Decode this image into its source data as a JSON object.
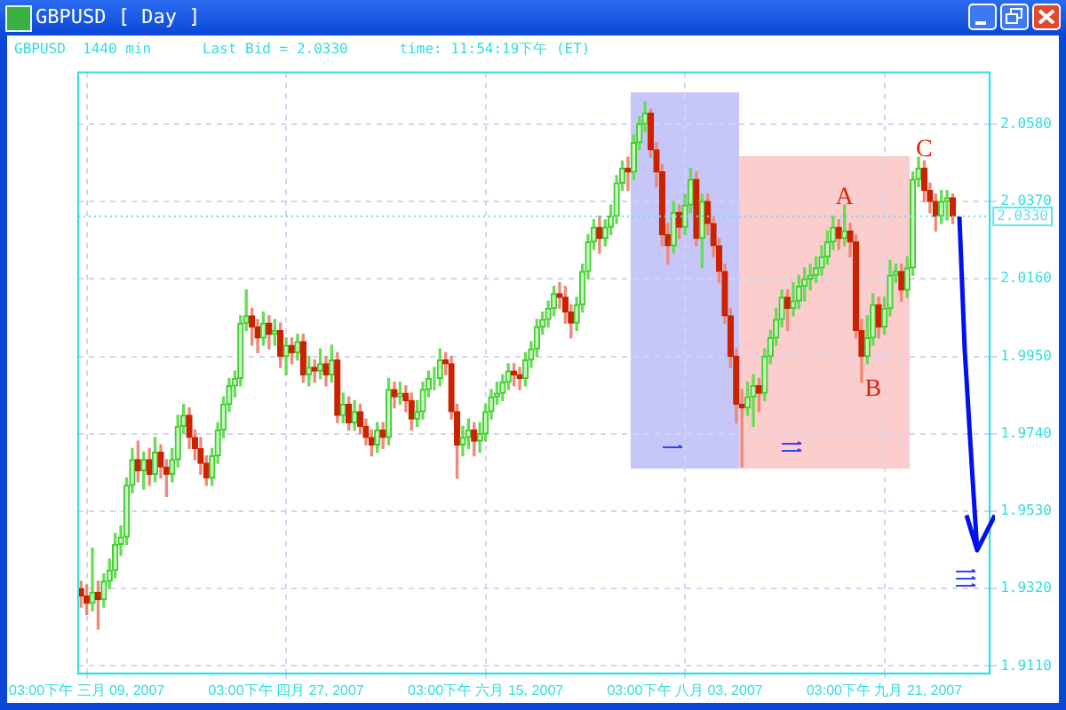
{
  "chart_data": {
    "type": "candlestick",
    "title": "GBPUSD [ Day ]",
    "subtitle": "GBPUSD  1440 min      Last Bid = 2.0330      time: 11:54:19下午 (ET)",
    "categories": [
      null,
      "03:00下午 三月 09, 2007",
      null,
      null,
      null,
      null,
      null,
      null,
      null,
      null,
      null,
      null,
      null,
      null,
      null,
      null,
      null,
      null,
      null,
      null,
      null,
      null,
      null,
      null,
      null,
      null,
      null,
      null,
      null,
      null,
      null,
      null,
      null,
      null,
      null,
      null,
      "03:00下午 四月 27, 2007",
      null,
      null,
      null,
      null,
      null,
      null,
      null,
      null,
      null,
      null,
      null,
      null,
      null,
      null,
      null,
      null,
      null,
      null,
      null,
      null,
      null,
      null,
      null,
      null,
      null,
      null,
      null,
      null,
      null,
      null,
      null,
      null,
      null,
      null,
      "03:00下午 六月 15, 2007",
      null,
      null,
      null,
      null,
      null,
      null,
      null,
      null,
      null,
      null,
      null,
      null,
      null,
      null,
      null,
      null,
      null,
      null,
      null,
      null,
      null,
      null,
      null,
      null,
      null,
      null,
      null,
      null,
      null,
      null,
      null,
      null,
      null,
      null,
      "03:00下午 八月 03, 2007",
      null,
      null,
      null,
      null,
      null,
      null,
      null,
      null,
      null,
      null,
      null,
      null,
      null,
      null,
      null,
      null,
      null,
      null,
      null,
      null,
      null,
      null,
      null,
      null,
      null,
      null,
      null,
      null,
      null,
      null,
      null,
      null,
      null,
      null,
      "03:00下午 九月 21, 2007",
      null,
      null,
      null,
      null,
      null,
      null,
      null,
      null,
      null,
      null,
      null,
      null
    ],
    "ohlc": [
      [
        1.932,
        1.934,
        1.927,
        1.93
      ],
      [
        1.93,
        1.933,
        1.925,
        1.928
      ],
      [
        1.928,
        1.943,
        1.926,
        1.931
      ],
      [
        1.931,
        1.934,
        1.921,
        1.929
      ],
      [
        1.929,
        1.936,
        1.927,
        1.934
      ],
      [
        1.934,
        1.94,
        1.932,
        1.937
      ],
      [
        1.937,
        1.947,
        1.935,
        1.944
      ],
      [
        1.944,
        1.949,
        1.941,
        1.946
      ],
      [
        1.946,
        1.962,
        1.944,
        1.96
      ],
      [
        1.96,
        1.97,
        1.958,
        1.967
      ],
      [
        1.967,
        1.972,
        1.961,
        1.964
      ],
      [
        1.964,
        1.969,
        1.959,
        1.967
      ],
      [
        1.967,
        1.97,
        1.96,
        1.963
      ],
      [
        1.963,
        1.973,
        1.961,
        1.969
      ],
      [
        1.969,
        1.971,
        1.962,
        1.965
      ],
      [
        1.965,
        1.967,
        1.957,
        1.963
      ],
      [
        1.963,
        1.97,
        1.961,
        1.967
      ],
      [
        1.967,
        1.979,
        1.965,
        1.976
      ],
      [
        1.976,
        1.982,
        1.974,
        1.979
      ],
      [
        1.979,
        1.981,
        1.97,
        1.973
      ],
      [
        1.973,
        1.975,
        1.967,
        1.97
      ],
      [
        1.97,
        1.973,
        1.963,
        1.966
      ],
      [
        1.966,
        1.968,
        1.96,
        1.962
      ],
      [
        1.962,
        1.97,
        1.96,
        1.968
      ],
      [
        1.968,
        1.977,
        1.966,
        1.975
      ],
      [
        1.975,
        1.984,
        1.973,
        1.982
      ],
      [
        1.982,
        1.989,
        1.98,
        1.987
      ],
      [
        1.987,
        1.991,
        1.984,
        1.989
      ],
      [
        1.989,
        2.006,
        1.987,
        2.004
      ],
      [
        2.004,
        2.013,
        2.002,
        2.006
      ],
      [
        2.006,
        2.008,
        1.998,
        2.003
      ],
      [
        2.003,
        2.005,
        1.996,
        2.0
      ],
      [
        2.0,
        2.007,
        1.998,
        2.004
      ],
      [
        2.004,
        2.006,
        1.997,
        2.001
      ],
      [
        2.001,
        2.005,
        1.998,
        2.002
      ],
      [
        2.002,
        2.004,
        1.992,
        1.995
      ],
      [
        1.995,
        2.0,
        1.99,
        1.998
      ],
      [
        1.998,
        2.0,
        1.993,
        1.996
      ],
      [
        1.996,
        2.001,
        1.994,
        1.999
      ],
      [
        1.999,
        2.001,
        1.988,
        1.99
      ],
      [
        1.99,
        1.995,
        1.987,
        1.992
      ],
      [
        1.992,
        1.994,
        1.988,
        1.991
      ],
      [
        1.991,
        1.997,
        1.989,
        1.993
      ],
      [
        1.993,
        1.995,
        1.987,
        1.99
      ],
      [
        1.99,
        1.998,
        1.988,
        1.994
      ],
      [
        1.994,
        1.996,
        1.977,
        1.979
      ],
      [
        1.979,
        1.985,
        1.977,
        1.982
      ],
      [
        1.982,
        1.984,
        1.975,
        1.977
      ],
      [
        1.977,
        1.983,
        1.975,
        1.98
      ],
      [
        1.98,
        1.982,
        1.974,
        1.976
      ],
      [
        1.976,
        1.978,
        1.971,
        1.973
      ],
      [
        1.973,
        1.975,
        1.968,
        1.971
      ],
      [
        1.971,
        1.977,
        1.969,
        1.975
      ],
      [
        1.975,
        1.977,
        1.97,
        1.973
      ],
      [
        1.973,
        1.989,
        1.971,
        1.986
      ],
      [
        1.986,
        1.988,
        1.981,
        1.984
      ],
      [
        1.984,
        1.988,
        1.982,
        1.985
      ],
      [
        1.985,
        1.987,
        1.98,
        1.983
      ],
      [
        1.983,
        1.985,
        1.975,
        1.978
      ],
      [
        1.978,
        1.983,
        1.976,
        1.98
      ],
      [
        1.98,
        1.988,
        1.978,
        1.986
      ],
      [
        1.986,
        1.991,
        1.984,
        1.989
      ],
      [
        1.989,
        1.992,
        1.986,
        1.989
      ],
      [
        1.989,
        1.997,
        1.987,
        1.994
      ],
      [
        1.994,
        1.996,
        1.99,
        1.993
      ],
      [
        1.993,
        1.995,
        1.978,
        1.98
      ],
      [
        1.98,
        1.982,
        1.962,
        1.971
      ],
      [
        1.971,
        1.976,
        1.968,
        1.973
      ],
      [
        1.973,
        1.978,
        1.97,
        1.975
      ],
      [
        1.975,
        1.977,
        1.968,
        1.972
      ],
      [
        1.972,
        1.977,
        1.969,
        1.974
      ],
      [
        1.974,
        1.982,
        1.972,
        1.98
      ],
      [
        1.98,
        1.986,
        1.978,
        1.984
      ],
      [
        1.984,
        1.988,
        1.982,
        1.985
      ],
      [
        1.985,
        1.99,
        1.983,
        1.988
      ],
      [
        1.988,
        1.993,
        1.986,
        1.991
      ],
      [
        1.991,
        1.993,
        1.987,
        1.99
      ],
      [
        1.99,
        1.992,
        1.986,
        1.989
      ],
      [
        1.989,
        1.996,
        1.987,
        1.994
      ],
      [
        1.994,
        1.999,
        1.992,
        1.997
      ],
      [
        1.997,
        2.005,
        1.995,
        2.003
      ],
      [
        2.003,
        2.007,
        2.001,
        2.005
      ],
      [
        2.005,
        2.01,
        2.003,
        2.008
      ],
      [
        2.008,
        2.014,
        2.006,
        2.012
      ],
      [
        2.012,
        2.015,
        2.008,
        2.011
      ],
      [
        2.011,
        2.014,
        2.004,
        2.007
      ],
      [
        2.007,
        2.009,
        2.0,
        2.004
      ],
      [
        2.004,
        2.011,
        2.002,
        2.009
      ],
      [
        2.009,
        2.02,
        2.007,
        2.018
      ],
      [
        2.018,
        2.028,
        2.016,
        2.026
      ],
      [
        2.026,
        2.032,
        2.024,
        2.03
      ],
      [
        2.03,
        2.033,
        2.023,
        2.027
      ],
      [
        2.027,
        2.032,
        2.025,
        2.03
      ],
      [
        2.03,
        2.036,
        2.028,
        2.033
      ],
      [
        2.033,
        2.044,
        2.031,
        2.042
      ],
      [
        2.042,
        2.048,
        2.04,
        2.046
      ],
      [
        2.046,
        2.049,
        2.04,
        2.045
      ],
      [
        2.045,
        2.055,
        2.043,
        2.053
      ],
      [
        2.053,
        2.06,
        2.051,
        2.058
      ],
      [
        2.058,
        2.064,
        2.056,
        2.061
      ],
      [
        2.061,
        2.062,
        2.049,
        2.051
      ],
      [
        2.051,
        2.053,
        2.041,
        2.045
      ],
      [
        2.045,
        2.047,
        2.025,
        2.028
      ],
      [
        2.028,
        2.031,
        2.02,
        2.025
      ],
      [
        2.025,
        2.037,
        2.023,
        2.034
      ],
      [
        2.034,
        2.036,
        2.027,
        2.03
      ],
      [
        2.03,
        2.039,
        2.028,
        2.036
      ],
      [
        2.036,
        2.046,
        2.034,
        2.043
      ],
      [
        2.043,
        2.045,
        2.025,
        2.027
      ],
      [
        2.027,
        2.039,
        2.019,
        2.037
      ],
      [
        2.037,
        2.039,
        2.028,
        2.031
      ],
      [
        2.031,
        2.033,
        2.022,
        2.025
      ],
      [
        2.025,
        2.027,
        2.015,
        2.018
      ],
      [
        2.018,
        2.02,
        2.004,
        2.006
      ],
      [
        2.006,
        2.008,
        1.992,
        1.995
      ],
      [
        1.995,
        1.997,
        1.977,
        1.982
      ],
      [
        1.982,
        1.986,
        1.965,
        1.981
      ],
      [
        1.981,
        1.988,
        1.979,
        1.984
      ],
      [
        1.984,
        1.99,
        1.976,
        1.987
      ],
      [
        1.987,
        1.989,
        1.98,
        1.985
      ],
      [
        1.985,
        1.997,
        1.983,
        1.995
      ],
      [
        1.995,
        2.002,
        1.993,
        2.0
      ],
      [
        2.0,
        2.008,
        1.998,
        2.005
      ],
      [
        2.005,
        2.013,
        2.003,
        2.011
      ],
      [
        2.011,
        2.013,
        2.002,
        2.008
      ],
      [
        2.008,
        2.015,
        2.006,
        2.01
      ],
      [
        2.01,
        2.017,
        2.008,
        2.014
      ],
      [
        2.014,
        2.019,
        2.01,
        2.016
      ],
      [
        2.016,
        2.02,
        2.013,
        2.017
      ],
      [
        2.017,
        2.022,
        2.015,
        2.019
      ],
      [
        2.019,
        2.025,
        2.017,
        2.022
      ],
      [
        2.022,
        2.029,
        2.02,
        2.026
      ],
      [
        2.026,
        2.033,
        2.024,
        2.03
      ],
      [
        2.03,
        2.032,
        2.024,
        2.027
      ],
      [
        2.027,
        2.036,
        2.025,
        2.029
      ],
      [
        2.029,
        2.031,
        2.022,
        2.026
      ],
      [
        2.026,
        2.028,
        2.0,
        2.002
      ],
      [
        2.002,
        2.005,
        1.988,
        1.995
      ],
      [
        1.995,
        2.006,
        1.993,
        2.0
      ],
      [
        2.0,
        2.012,
        1.998,
        2.009
      ],
      [
        2.009,
        2.011,
        2.0,
        2.003
      ],
      [
        2.003,
        2.011,
        2.001,
        2.008
      ],
      [
        2.008,
        2.021,
        2.006,
        2.017
      ],
      [
        2.017,
        2.02,
        2.015,
        2.018
      ],
      [
        2.018,
        2.02,
        2.01,
        2.013
      ],
      [
        2.013,
        2.022,
        2.011,
        2.019
      ],
      [
        2.019,
        2.045,
        2.017,
        2.043
      ],
      [
        2.043,
        2.049,
        2.041,
        2.046
      ],
      [
        2.046,
        2.048,
        2.037,
        2.04
      ],
      [
        2.04,
        2.042,
        2.034,
        2.037
      ],
      [
        2.037,
        2.039,
        2.029,
        2.033
      ],
      [
        2.033,
        2.04,
        2.031,
        2.037
      ],
      [
        2.037,
        2.04,
        2.032,
        2.038
      ],
      [
        2.038,
        2.039,
        2.031,
        2.033
      ]
    ],
    "ylim": [
      1.909,
      2.072
    ],
    "yticks": [
      {
        "value": 1.911,
        "label": "1.9110"
      },
      {
        "value": 1.932,
        "label": "1.9320"
      },
      {
        "value": 1.953,
        "label": "1.9530"
      },
      {
        "value": 1.974,
        "label": "1.9740"
      },
      {
        "value": 1.995,
        "label": "1.9950"
      },
      {
        "value": 2.016,
        "label": "2.0160"
      },
      {
        "value": 2.037,
        "label": "2.0370"
      },
      {
        "value": 2.058,
        "label": "2.0580"
      }
    ],
    "grid": true,
    "ref_lines": [
      {
        "axis": "y",
        "value": 2.033,
        "label": "2.0330",
        "color": "#66ddee",
        "line_style": "dotted"
      }
    ],
    "annotations": [
      "A",
      "B",
      "C"
    ]
  }
}
